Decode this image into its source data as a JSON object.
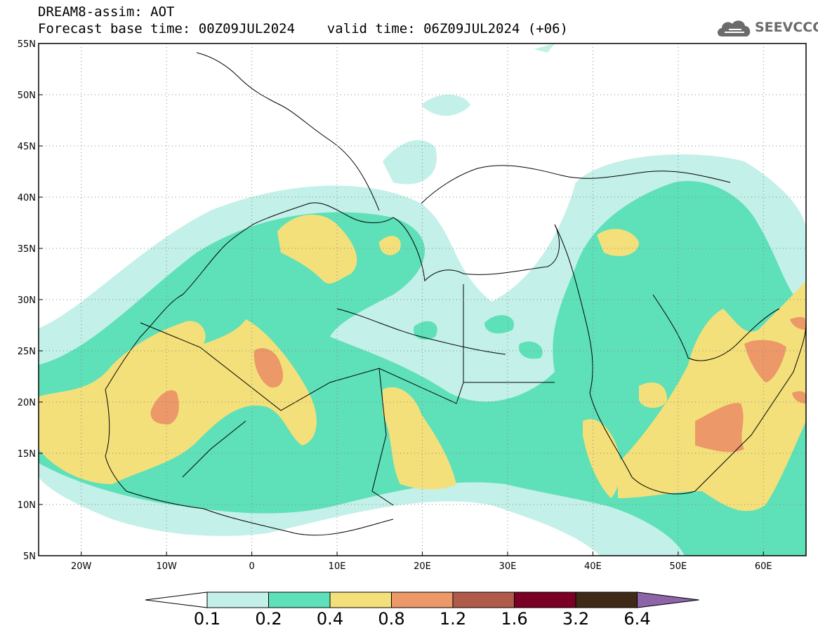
{
  "header": {
    "title_line1": "DREAM8-assim: AOT",
    "title_line2": "Forecast base time: 00Z09JUL2024    valid time: 06Z09JUL2024 (+06)"
  },
  "logo": {
    "text": "SEEVCCC",
    "icon": "cloud-icon"
  },
  "map": {
    "lon_range": [
      -25,
      65
    ],
    "lat_range": [
      5,
      55
    ],
    "lat_ticks": [
      {
        "value": 55,
        "label": "55N"
      },
      {
        "value": 50,
        "label": "50N"
      },
      {
        "value": 45,
        "label": "45N"
      },
      {
        "value": 40,
        "label": "40N"
      },
      {
        "value": 35,
        "label": "35N"
      },
      {
        "value": 30,
        "label": "30N"
      },
      {
        "value": 25,
        "label": "25N"
      },
      {
        "value": 20,
        "label": "20N"
      },
      {
        "value": 15,
        "label": "15N"
      },
      {
        "value": 10,
        "label": "10N"
      },
      {
        "value": 5,
        "label": "5N"
      }
    ],
    "lon_ticks": [
      {
        "value": -20,
        "label": "20W"
      },
      {
        "value": -10,
        "label": "10W"
      },
      {
        "value": 0,
        "label": "0"
      },
      {
        "value": 10,
        "label": "10E"
      },
      {
        "value": 20,
        "label": "20E"
      },
      {
        "value": 30,
        "label": "30E"
      },
      {
        "value": 40,
        "label": "40E"
      },
      {
        "value": 50,
        "label": "50E"
      },
      {
        "value": 60,
        "label": "60E"
      }
    ],
    "grid": "dotted"
  },
  "colorbar": {
    "colors": [
      "#c3f0e8",
      "#5ee0b8",
      "#f4e07a",
      "#ec9868",
      "#b05a4a",
      "#7a0025",
      "#3f2a18",
      "#8e64a8"
    ],
    "labels": [
      "0.1",
      "0.2",
      "0.4",
      "0.8",
      "1.2",
      "1.6",
      "3.2",
      "6.4"
    ]
  }
}
